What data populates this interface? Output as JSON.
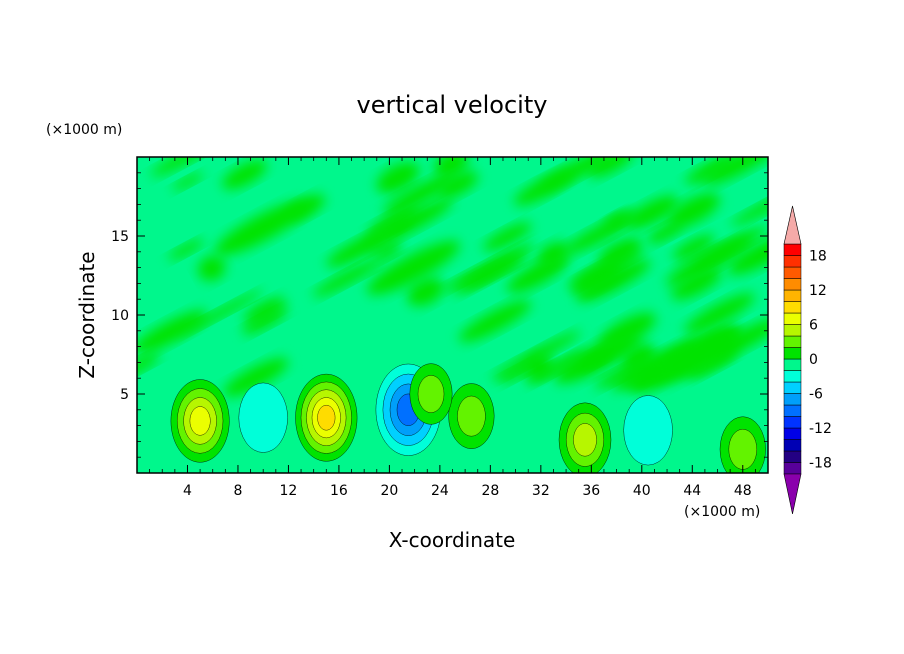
{
  "chart_data": {
    "type": "heatmap",
    "title": "vertical velocity",
    "xlabel": "X-coordinate",
    "ylabel": "Z-coordinate",
    "x_unit": "(×1000 m)",
    "y_unit": "(×1000 m)",
    "xlim": [
      0,
      50
    ],
    "ylim": [
      0,
      20
    ],
    "x_ticks": [
      4,
      8,
      12,
      16,
      20,
      24,
      28,
      32,
      36,
      40,
      44,
      48
    ],
    "y_ticks": [
      5,
      10,
      15
    ],
    "background_level": 0,
    "features": [
      {
        "x": 5,
        "z": 3.3,
        "value": 7
      },
      {
        "x": 15,
        "z": 3.5,
        "value": 8
      },
      {
        "x": 35.5,
        "z": 2.1,
        "value": 5
      },
      {
        "x": 21.5,
        "z": 4,
        "value": -9
      },
      {
        "x": 10,
        "z": 3.5,
        "value": -4
      },
      {
        "x": 40.5,
        "z": 2.7,
        "value": -4
      },
      {
        "x": 26.5,
        "z": 3.6,
        "value": 3
      },
      {
        "x": 23.3,
        "z": 5,
        "value": 2
      },
      {
        "x": 48,
        "z": 1.5,
        "value": 3
      }
    ],
    "colorbar": {
      "levels": [
        -20,
        -18,
        -16,
        -14,
        -12,
        -10,
        -8,
        -6,
        -4,
        -2,
        0,
        2,
        4,
        6,
        8,
        10,
        12,
        14,
        16,
        18,
        20
      ],
      "tick_labels": [
        "18",
        "12",
        "6",
        "0",
        "-6",
        "-12",
        "-18"
      ],
      "colors": [
        "#58009a",
        "#230083",
        "#0000b4",
        "#0000e6",
        "#0033ff",
        "#0070ff",
        "#009ffa",
        "#00d0ff",
        "#00ffd9",
        "#00f78c",
        "#00e300",
        "#63f300",
        "#b7f600",
        "#ebff00",
        "#ffdc00",
        "#ffb400",
        "#ff8c00",
        "#ff5a00",
        "#ff3000",
        "#ff0000"
      ],
      "extend_low_color": "#8a00ac",
      "extend_high_color": "#f5aaa8"
    }
  }
}
